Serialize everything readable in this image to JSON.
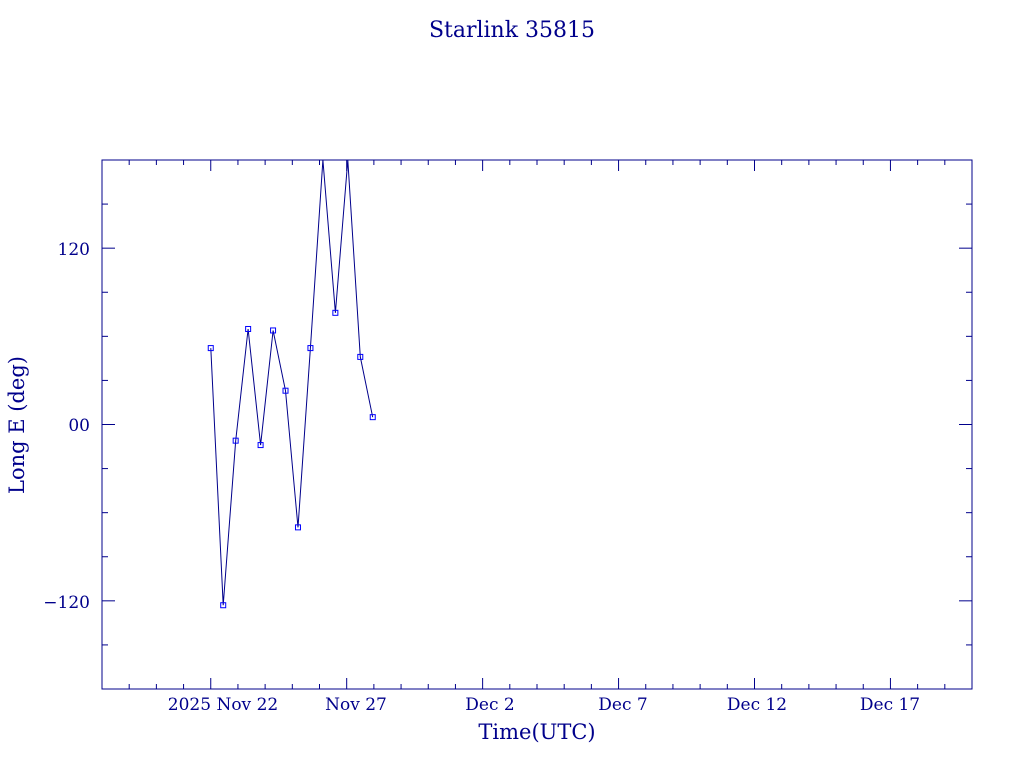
{
  "chart_data": {
    "type": "line",
    "title": "Starlink 35815",
    "xlabel": "Time(UTC)",
    "ylabel": "Long E (deg)",
    "x_tick_labels": [
      "2025 Nov 22",
      "Nov 27",
      "Dec  2",
      "Dec  7",
      "Dec 12",
      "Dec 17"
    ],
    "y_tick_labels": [
      "−120",
      "00",
      "120"
    ],
    "y_ticks": [
      -120,
      0,
      120
    ],
    "xlim": [
      "2025-11-18",
      "2025-12-20"
    ],
    "ylim": [
      -180,
      180
    ],
    "grid": false,
    "legend": "none",
    "colors": {
      "line": "#00008b",
      "marker": "#0000ff"
    },
    "series": [
      {
        "x": [
          "2025-11-22T00:00",
          "2025-11-22T11:00",
          "2025-11-22T22:00",
          "2025-11-23T09:00",
          "2025-11-23T20:00",
          "2025-11-24T07:00",
          "2025-11-24T18:00",
          "2025-11-25T05:00",
          "2025-11-25T16:00",
          "2025-11-26T03:00",
          "2025-11-26T14:00",
          "2025-11-27T01:00",
          "2025-11-27T12:00",
          "2025-11-27T23:00"
        ],
        "values": [
          52,
          -123,
          -11,
          65,
          -14,
          64,
          23,
          -70,
          52,
          180,
          76,
          180,
          46,
          5
        ]
      }
    ]
  }
}
